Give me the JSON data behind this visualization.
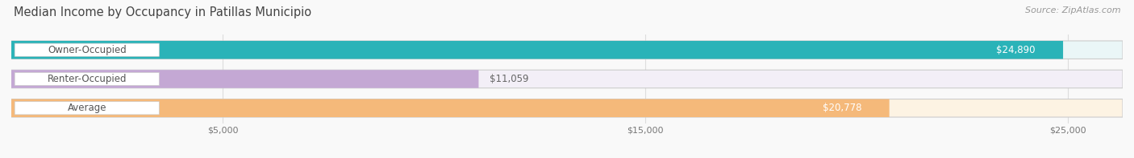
{
  "title": "Median Income by Occupancy in Patillas Municipio",
  "source": "Source: ZipAtlas.com",
  "categories": [
    "Owner-Occupied",
    "Renter-Occupied",
    "Average"
  ],
  "values": [
    24890,
    11059,
    20778
  ],
  "labels": [
    "$24,890",
    "$11,059",
    "$20,778"
  ],
  "bar_colors": [
    "#2ab3b8",
    "#c4a8d4",
    "#f5b97a"
  ],
  "bar_bg_colors": [
    "#eaf6f7",
    "#f3eff7",
    "#fdf3e3"
  ],
  "xmax": 26300,
  "xmin": 0,
  "xticks": [
    5000,
    15000,
    25000
  ],
  "xtick_labels": [
    "$5,000",
    "$15,000",
    "$25,000"
  ],
  "title_fontsize": 10.5,
  "source_fontsize": 8,
  "label_fontsize": 8.5,
  "value_fontsize": 8.5,
  "tick_fontsize": 8,
  "background_color": "#f9f9f9",
  "bar_height": 0.62,
  "bar_label_color_inside": "#ffffff",
  "bar_label_color_outside": "#666666",
  "grid_color": "#dddddd",
  "cat_label_color": "#555555",
  "border_color": "#cccccc"
}
